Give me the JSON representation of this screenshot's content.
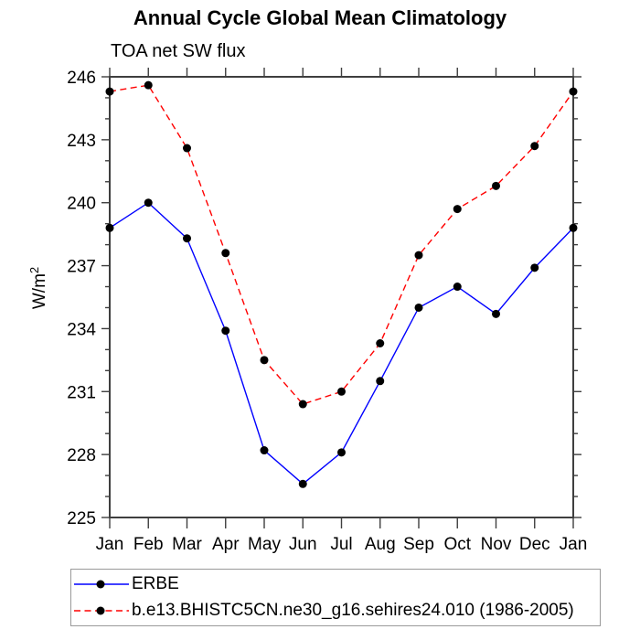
{
  "title": "Annual Cycle Global Mean Climatology",
  "subtitle": "TOA net SW flux",
  "chart_data": {
    "type": "line",
    "x_categories": [
      "Jan",
      "Feb",
      "Mar",
      "Apr",
      "May",
      "Jun",
      "Jul",
      "Aug",
      "Sep",
      "Oct",
      "Nov",
      "Dec",
      "Jan"
    ],
    "ylabel_base": "W/m",
    "ylabel_sup": "2",
    "ylim": [
      225,
      246
    ],
    "ytick_major_interval": 3,
    "ytick_minor_interval": 1,
    "grid": false,
    "legend_position": "bottom-left-box",
    "series": [
      {
        "name": "ERBE",
        "color": "#0000ff",
        "line_style": "solid",
        "marker": "filled-circle",
        "marker_color": "#000000",
        "values": [
          238.8,
          240.0,
          238.3,
          233.9,
          228.2,
          226.6,
          228.1,
          231.5,
          235.0,
          236.0,
          234.7,
          236.9,
          238.8
        ]
      },
      {
        "name": "b.e13.BHISTC5CN.ne30_g16.sehires24.010 (1986-2005)",
        "color": "#ff0000",
        "line_style": "dashed",
        "marker": "filled-circle",
        "marker_color": "#000000",
        "values": [
          245.3,
          245.6,
          242.6,
          237.6,
          232.5,
          230.4,
          231.0,
          233.3,
          237.5,
          239.7,
          240.8,
          242.7,
          245.3
        ]
      }
    ]
  }
}
